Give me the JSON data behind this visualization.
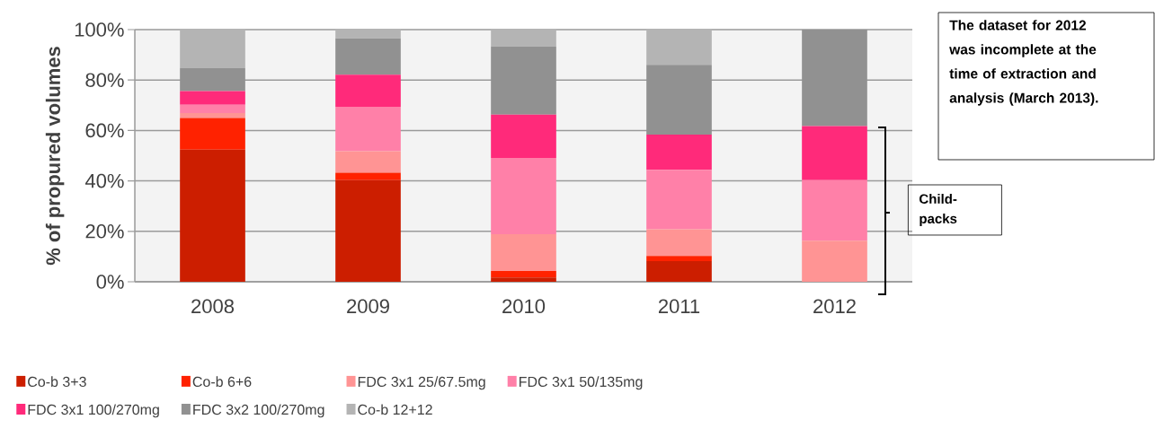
{
  "chart_data": {
    "type": "bar",
    "stacked": true,
    "ylabel": "% of propured volumes",
    "categories": [
      "2008",
      "2009",
      "2010",
      "2011",
      "2012"
    ],
    "series": [
      {
        "name": "Co-b 3+3",
        "color": "#cc1e00",
        "values": [
          52.4,
          40.3,
          1.7,
          8.2,
          0
        ]
      },
      {
        "name": "Co-b 6+6",
        "color": "#ff2200",
        "values": [
          12.5,
          2.9,
          2.6,
          2.0,
          0
        ]
      },
      {
        "name": "FDC 3x1 25/67.5mg",
        "color": "#ff9494",
        "values": [
          2.0,
          8.6,
          14.6,
          10.6,
          16.3
        ]
      },
      {
        "name": "FDC 3x1 50/135mg",
        "color": "#ff80a8",
        "values": [
          3.3,
          17.6,
          30.2,
          23.6,
          24.0
        ]
      },
      {
        "name": "FDC 3x1 100/270mg",
        "color": "#ff2a7a",
        "values": [
          5.4,
          12.7,
          17.2,
          14.0,
          21.4
        ]
      },
      {
        "name": "FDC 3x2 100/270mg",
        "color": "#919191",
        "values": [
          9.1,
          14.4,
          27.0,
          27.6,
          38.3
        ]
      },
      {
        "name": "Co-b 12+12",
        "color": "#b4b4b4",
        "values": [
          15.3,
          3.5,
          6.7,
          14.0,
          0
        ]
      }
    ],
    "ylim": [
      0,
      100
    ],
    "yticks": [
      {
        "value": 0,
        "label": "0%"
      },
      {
        "value": 20,
        "label": "20%"
      },
      {
        "value": 40,
        "label": "40%"
      },
      {
        "value": 60,
        "label": "60%"
      },
      {
        "value": 80,
        "label": "80%"
      },
      {
        "value": 100,
        "label": "100%"
      }
    ],
    "grid": "y",
    "legend": "bottom",
    "annotations": [
      "The dataset for 2012 was incomplete at the time of extraction and analysis  (March 2013).",
      "Child-packs"
    ]
  }
}
